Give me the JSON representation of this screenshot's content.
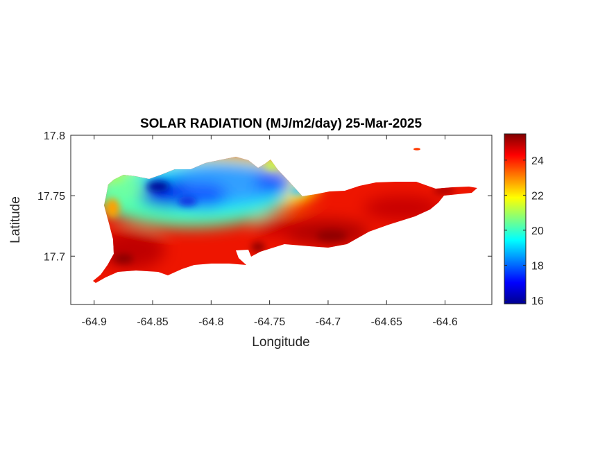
{
  "chart_data": {
    "type": "heatmap",
    "title": "SOLAR RADIATION (MJ/m2/day) 25-Mar-2025",
    "xlabel": "Longitude",
    "ylabel": "Latitude",
    "xlim": [
      -64.92,
      -64.56
    ],
    "ylim": [
      17.66,
      17.8
    ],
    "x_ticks": [
      -64.9,
      -64.85,
      -64.8,
      -64.75,
      -64.7,
      -64.65,
      -64.6
    ],
    "x_tick_labels": [
      "-64.9",
      "-64.85",
      "-64.8",
      "-64.75",
      "-64.7",
      "-64.65",
      "-64.6"
    ],
    "y_ticks": [
      17.8,
      17.75,
      17.7
    ],
    "y_tick_labels": [
      "17.8",
      "17.75",
      "17.7"
    ],
    "colorbar": {
      "colormap": "jet",
      "range": [
        15.8,
        25.5
      ],
      "ticks": [
        16,
        18,
        20,
        22,
        24
      ],
      "tick_labels": [
        "16",
        "18",
        "20",
        "22",
        "24"
      ]
    },
    "field_summary": {
      "north_west_low": 17,
      "north_central": 19,
      "transition": 22,
      "south_and_east_high": 24.5,
      "max_south_central": 25.5
    },
    "grid": false
  }
}
